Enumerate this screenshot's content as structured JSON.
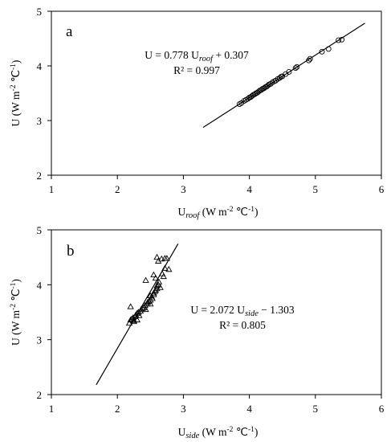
{
  "chart_data": [
    {
      "type": "scatter",
      "panel_label": "a",
      "xlabel": {
        "main": "U",
        "sub": "roof",
        "rest": " (W m",
        "sup1": "-2",
        "mid": " ℃",
        "sup2": "-1",
        "end": ")"
      },
      "ylabel": {
        "main": "U (W m",
        "sup1": "-2",
        "mid": " ℃",
        "sup2": "-1",
        "end": ")"
      },
      "xlim": [
        1,
        6
      ],
      "ylim": [
        2,
        5
      ],
      "x_ticks": [
        "1",
        "2",
        "3",
        "4",
        "5",
        "6"
      ],
      "y_ticks": [
        "2",
        "3",
        "4",
        "5"
      ],
      "grid": false,
      "marker": "circle",
      "equation": {
        "lhs": "U = 0.778 U",
        "sub": "roof",
        "rhs": " + 0.307",
        "r2": "R² = 0.997"
      },
      "fit_line": {
        "slope": 0.778,
        "intercept": 0.307,
        "x_range": [
          3.3,
          5.75
        ]
      },
      "series": [
        {
          "x": [
            3.85,
            3.88,
            3.92,
            3.95,
            3.98,
            4.0,
            4.02,
            4.04,
            4.06,
            4.08,
            4.1,
            4.12,
            4.14,
            4.16,
            4.18,
            4.2,
            4.22,
            4.24,
            4.26,
            4.28,
            4.3,
            4.32,
            4.35,
            4.38,
            4.4,
            4.43,
            4.46,
            4.48,
            4.5,
            4.55,
            4.6,
            4.7,
            4.72,
            4.9,
            4.92,
            5.1,
            5.2,
            5.35,
            5.4
          ],
          "y": [
            3.3,
            3.32,
            3.36,
            3.38,
            3.4,
            3.42,
            3.43,
            3.45,
            3.47,
            3.48,
            3.5,
            3.51,
            3.53,
            3.55,
            3.56,
            3.58,
            3.59,
            3.61,
            3.62,
            3.64,
            3.66,
            3.67,
            3.7,
            3.72,
            3.73,
            3.76,
            3.78,
            3.8,
            3.81,
            3.85,
            3.89,
            3.96,
            3.98,
            4.1,
            4.13,
            4.26,
            4.31,
            4.47,
            4.48
          ]
        }
      ]
    },
    {
      "type": "scatter",
      "panel_label": "b",
      "xlabel": {
        "main": "U",
        "sub": "side",
        "rest": " (W m",
        "sup1": "-2",
        "mid": " ℃",
        "sup2": "-1",
        "end": ")"
      },
      "ylabel": {
        "main": "U (W m",
        "sup1": "-2",
        "mid": " ℃",
        "sup2": "-1",
        "end": ")"
      },
      "xlim": [
        1,
        6
      ],
      "ylim": [
        2,
        5
      ],
      "x_ticks": [
        "1",
        "2",
        "3",
        "4",
        "5",
        "6"
      ],
      "y_ticks": [
        "2",
        "3",
        "4",
        "5"
      ],
      "grid": false,
      "marker": "triangle",
      "equation": {
        "lhs": "U = 2.072 U",
        "sub": "side",
        "rhs": " − 1.303",
        "r2": "R² = 0.805"
      },
      "fit_line": {
        "slope": 2.072,
        "intercept": -1.303,
        "x_range": [
          1.68,
          2.92
        ]
      },
      "series": [
        {
          "x": [
            2.18,
            2.2,
            2.22,
            2.24,
            2.25,
            2.27,
            2.28,
            2.3,
            2.32,
            2.33,
            2.35,
            2.36,
            2.38,
            2.4,
            2.42,
            2.43,
            2.45,
            2.46,
            2.48,
            2.5,
            2.5,
            2.52,
            2.53,
            2.55,
            2.55,
            2.57,
            2.58,
            2.6,
            2.6,
            2.62,
            2.63,
            2.65,
            2.68,
            2.7,
            2.72,
            2.75,
            2.2,
            2.43,
            2.55,
            2.6,
            2.62,
            2.67,
            2.72,
            2.78,
            2.3,
            2.5,
            2.58,
            2.25
          ],
          "y": [
            3.3,
            3.36,
            3.38,
            3.4,
            3.35,
            3.42,
            3.45,
            3.48,
            3.5,
            3.44,
            3.52,
            3.55,
            3.57,
            3.58,
            3.62,
            3.55,
            3.65,
            3.68,
            3.7,
            3.72,
            3.8,
            3.78,
            3.75,
            3.85,
            3.82,
            3.88,
            3.9,
            3.93,
            3.98,
            4.0,
            4.05,
            3.95,
            4.2,
            4.15,
            4.3,
            4.48,
            3.6,
            4.08,
            4.18,
            4.5,
            4.43,
            4.47,
            4.48,
            4.28,
            3.36,
            3.65,
            4.12,
            3.33
          ]
        }
      ]
    }
  ]
}
